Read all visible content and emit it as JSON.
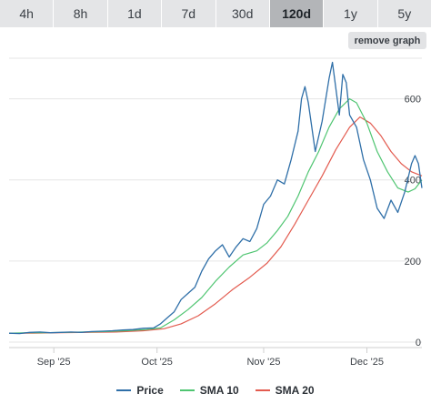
{
  "tabs": [
    {
      "label": "4h",
      "active": false
    },
    {
      "label": "8h",
      "active": false
    },
    {
      "label": "1d",
      "active": false
    },
    {
      "label": "7d",
      "active": false
    },
    {
      "label": "30d",
      "active": false
    },
    {
      "label": "120d",
      "active": true
    },
    {
      "label": "1y",
      "active": false
    },
    {
      "label": "5y",
      "active": false
    }
  ],
  "remove_graph_label": "remove graph",
  "chart_data": {
    "type": "line",
    "title": "",
    "xlabel": "",
    "ylabel": "",
    "x_start": "2025-08-19",
    "x_end": "2025-12-17",
    "x_ticks": [
      {
        "date": "2025-09-01",
        "label": "Sep '25"
      },
      {
        "date": "2025-10-01",
        "label": "Oct '25"
      },
      {
        "date": "2025-11-01",
        "label": "Nov '25"
      },
      {
        "date": "2025-12-01",
        "label": "Dec '25"
      }
    ],
    "y_ticks": [
      0,
      200,
      400,
      600
    ],
    "ylim": [
      0,
      700
    ],
    "grid": true,
    "legend_position": "bottom",
    "series": [
      {
        "name": "Price",
        "color": "#2f6fa8",
        "points": [
          [
            "2025-08-19",
            22
          ],
          [
            "2025-08-22",
            21
          ],
          [
            "2025-08-25",
            24
          ],
          [
            "2025-08-28",
            25
          ],
          [
            "2025-08-31",
            23
          ],
          [
            "2025-09-03",
            24
          ],
          [
            "2025-09-06",
            25
          ],
          [
            "2025-09-09",
            24
          ],
          [
            "2025-09-12",
            26
          ],
          [
            "2025-09-15",
            27
          ],
          [
            "2025-09-18",
            28
          ],
          [
            "2025-09-21",
            30
          ],
          [
            "2025-09-24",
            31
          ],
          [
            "2025-09-27",
            34
          ],
          [
            "2025-09-30",
            35
          ],
          [
            "2025-10-02",
            45
          ],
          [
            "2025-10-04",
            60
          ],
          [
            "2025-10-06",
            75
          ],
          [
            "2025-10-08",
            105
          ],
          [
            "2025-10-10",
            120
          ],
          [
            "2025-10-12",
            135
          ],
          [
            "2025-10-14",
            175
          ],
          [
            "2025-10-16",
            205
          ],
          [
            "2025-10-18",
            225
          ],
          [
            "2025-10-20",
            240
          ],
          [
            "2025-10-22",
            210
          ],
          [
            "2025-10-24",
            235
          ],
          [
            "2025-10-26",
            255
          ],
          [
            "2025-10-28",
            248
          ],
          [
            "2025-10-30",
            280
          ],
          [
            "2025-11-01",
            340
          ],
          [
            "2025-11-03",
            360
          ],
          [
            "2025-11-05",
            400
          ],
          [
            "2025-11-07",
            390
          ],
          [
            "2025-11-09",
            450
          ],
          [
            "2025-11-11",
            520
          ],
          [
            "2025-11-12",
            600
          ],
          [
            "2025-11-13",
            630
          ],
          [
            "2025-11-14",
            590
          ],
          [
            "2025-11-16",
            470
          ],
          [
            "2025-11-18",
            545
          ],
          [
            "2025-11-20",
            650
          ],
          [
            "2025-11-21",
            690
          ],
          [
            "2025-11-23",
            560
          ],
          [
            "2025-11-24",
            660
          ],
          [
            "2025-11-25",
            640
          ],
          [
            "2025-11-26",
            560
          ],
          [
            "2025-11-28",
            530
          ],
          [
            "2025-11-30",
            450
          ],
          [
            "2025-12-02",
            400
          ],
          [
            "2025-12-04",
            330
          ],
          [
            "2025-12-06",
            305
          ],
          [
            "2025-12-08",
            350
          ],
          [
            "2025-12-10",
            320
          ],
          [
            "2025-12-12",
            370
          ],
          [
            "2025-12-14",
            440
          ],
          [
            "2025-12-15",
            460
          ],
          [
            "2025-12-16",
            440
          ],
          [
            "2025-12-17",
            380
          ]
        ]
      },
      {
        "name": "SMA 10",
        "color": "#4fc571",
        "points": [
          [
            "2025-08-19",
            22
          ],
          [
            "2025-08-24",
            23
          ],
          [
            "2025-08-29",
            23
          ],
          [
            "2025-09-04",
            24
          ],
          [
            "2025-09-10",
            25
          ],
          [
            "2025-09-16",
            26
          ],
          [
            "2025-09-22",
            28
          ],
          [
            "2025-09-28",
            31
          ],
          [
            "2025-10-02",
            35
          ],
          [
            "2025-10-06",
            55
          ],
          [
            "2025-10-10",
            80
          ],
          [
            "2025-10-14",
            110
          ],
          [
            "2025-10-18",
            150
          ],
          [
            "2025-10-22",
            185
          ],
          [
            "2025-10-26",
            215
          ],
          [
            "2025-10-30",
            225
          ],
          [
            "2025-11-02",
            245
          ],
          [
            "2025-11-05",
            275
          ],
          [
            "2025-11-08",
            310
          ],
          [
            "2025-11-11",
            360
          ],
          [
            "2025-11-14",
            420
          ],
          [
            "2025-11-17",
            470
          ],
          [
            "2025-11-20",
            530
          ],
          [
            "2025-11-23",
            575
          ],
          [
            "2025-11-26",
            600
          ],
          [
            "2025-11-28",
            590
          ],
          [
            "2025-12-01",
            540
          ],
          [
            "2025-12-04",
            470
          ],
          [
            "2025-12-07",
            420
          ],
          [
            "2025-12-10",
            380
          ],
          [
            "2025-12-13",
            370
          ],
          [
            "2025-12-15",
            378
          ],
          [
            "2025-12-17",
            400
          ]
        ]
      },
      {
        "name": "SMA 20",
        "color": "#e35b4f",
        "points": [
          [
            "2025-08-19",
            22
          ],
          [
            "2025-08-26",
            22
          ],
          [
            "2025-09-03",
            23
          ],
          [
            "2025-09-11",
            24
          ],
          [
            "2025-09-19",
            25
          ],
          [
            "2025-09-27",
            28
          ],
          [
            "2025-10-03",
            33
          ],
          [
            "2025-10-08",
            45
          ],
          [
            "2025-10-13",
            65
          ],
          [
            "2025-10-18",
            95
          ],
          [
            "2025-10-23",
            130
          ],
          [
            "2025-10-28",
            160
          ],
          [
            "2025-11-02",
            195
          ],
          [
            "2025-11-06",
            235
          ],
          [
            "2025-11-10",
            290
          ],
          [
            "2025-11-14",
            350
          ],
          [
            "2025-11-18",
            410
          ],
          [
            "2025-11-22",
            475
          ],
          [
            "2025-11-26",
            530
          ],
          [
            "2025-11-29",
            555
          ],
          [
            "2025-12-02",
            540
          ],
          [
            "2025-12-05",
            510
          ],
          [
            "2025-12-08",
            470
          ],
          [
            "2025-12-11",
            440
          ],
          [
            "2025-12-14",
            420
          ],
          [
            "2025-12-17",
            410
          ]
        ]
      }
    ]
  }
}
